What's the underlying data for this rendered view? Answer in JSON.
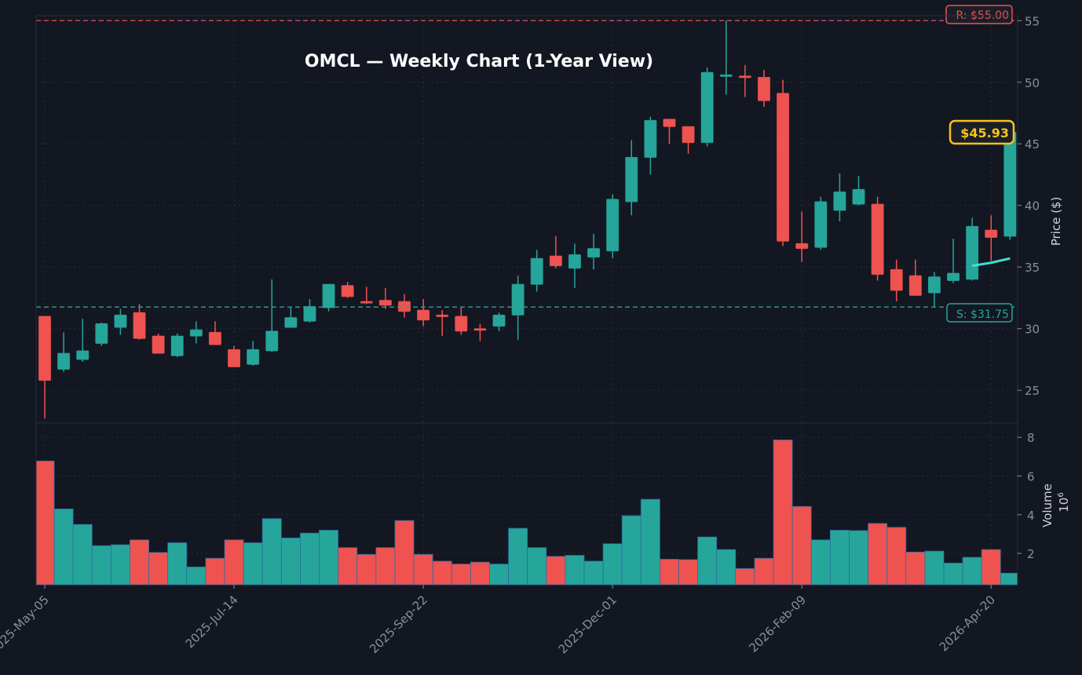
{
  "chart_data": {
    "type": "candlestick",
    "title": "OMCL — Weekly Chart (1-Year View)",
    "ylabel_price": "Price ($)",
    "ylabel_volume": "Volume",
    "volume_multiplier": "10^6",
    "price_ylim": [
      22.4,
      55.4
    ],
    "price_ticks": [
      25,
      30,
      35,
      40,
      45,
      50,
      55
    ],
    "volume_ylim": [
      0.38,
      8.7
    ],
    "volume_ticks": [
      2,
      4,
      6,
      8
    ],
    "x_tick_labels": [
      "2025-May-05",
      "2025-Jul-14",
      "2025-Sep-22",
      "2025-Dec-01",
      "2026-Feb-09",
      "2026-Apr-20"
    ],
    "grid": true,
    "colors": {
      "up": "#26a69a",
      "down": "#ef5350",
      "background": "#131722",
      "resistance": "#ef5350",
      "support": "#26a69a",
      "last_price": "#f5c518",
      "ma": "#3de0d0"
    },
    "resistance": {
      "value": 55.0,
      "label": "R: $55.00"
    },
    "support": {
      "value": 31.75,
      "label": "S: $31.75"
    },
    "last_price": {
      "value": 45.93,
      "label": "$45.93"
    },
    "moving_average": [
      {
        "date": "2026-04-13",
        "value": 35.1
      },
      {
        "date": "2026-04-20",
        "value": 35.35
      },
      {
        "date": "2026-04-27",
        "value": 35.7
      }
    ],
    "dates": [
      "2025-05-05",
      "2025-05-12",
      "2025-05-19",
      "2025-05-26",
      "2025-06-02",
      "2025-06-09",
      "2025-06-16",
      "2025-06-23",
      "2025-06-30",
      "2025-07-07",
      "2025-07-14",
      "2025-07-21",
      "2025-07-28",
      "2025-08-04",
      "2025-08-11",
      "2025-08-18",
      "2025-08-25",
      "2025-09-01",
      "2025-09-08",
      "2025-09-15",
      "2025-09-22",
      "2025-09-29",
      "2025-10-06",
      "2025-10-13",
      "2025-10-20",
      "2025-10-27",
      "2025-11-03",
      "2025-11-10",
      "2025-11-17",
      "2025-11-24",
      "2025-12-01",
      "2025-12-08",
      "2025-12-15",
      "2025-12-22",
      "2025-12-29",
      "2026-01-05",
      "2026-01-12",
      "2026-01-19",
      "2026-01-26",
      "2026-02-02",
      "2026-02-09",
      "2026-02-16",
      "2026-02-23",
      "2026-03-02",
      "2026-03-09",
      "2026-03-16",
      "2026-03-23",
      "2026-03-30",
      "2026-04-06",
      "2026-04-13",
      "2026-04-20",
      "2026-04-27"
    ],
    "ohlc": [
      [
        31.0,
        31.0,
        22.7,
        25.8
      ],
      [
        26.7,
        29.7,
        26.5,
        28.0
      ],
      [
        27.5,
        30.8,
        27.3,
        28.2
      ],
      [
        28.8,
        30.5,
        28.6,
        30.4
      ],
      [
        30.1,
        31.6,
        29.5,
        31.1
      ],
      [
        31.3,
        32.0,
        29.1,
        29.2
      ],
      [
        29.4,
        29.6,
        28.0,
        28.0
      ],
      [
        27.8,
        29.6,
        27.7,
        29.4
      ],
      [
        29.4,
        30.6,
        28.8,
        29.9
      ],
      [
        29.7,
        30.6,
        28.7,
        28.7
      ],
      [
        28.3,
        28.6,
        26.9,
        26.9
      ],
      [
        27.1,
        29.0,
        27.0,
        28.3
      ],
      [
        28.2,
        34.0,
        28.1,
        29.8
      ],
      [
        30.1,
        31.7,
        30.1,
        30.9
      ],
      [
        30.6,
        32.4,
        30.5,
        31.8
      ],
      [
        31.7,
        33.6,
        31.4,
        33.6
      ],
      [
        33.5,
        33.8,
        32.5,
        32.6
      ],
      [
        32.2,
        33.4,
        32.0,
        32.1
      ],
      [
        32.3,
        33.3,
        31.6,
        31.9
      ],
      [
        32.2,
        32.8,
        30.9,
        31.4
      ],
      [
        31.5,
        32.4,
        30.2,
        30.7
      ],
      [
        31.1,
        31.5,
        29.4,
        31.0
      ],
      [
        31.0,
        31.7,
        29.5,
        29.8
      ],
      [
        30.0,
        30.4,
        29.0,
        29.9
      ],
      [
        30.2,
        31.3,
        29.8,
        31.1
      ],
      [
        31.1,
        34.3,
        29.1,
        33.6
      ],
      [
        33.6,
        36.4,
        33.0,
        35.7
      ],
      [
        35.9,
        37.5,
        34.9,
        35.1
      ],
      [
        34.9,
        36.9,
        33.3,
        36.0
      ],
      [
        35.8,
        37.7,
        34.8,
        36.5
      ],
      [
        36.3,
        40.9,
        35.7,
        40.5
      ],
      [
        40.3,
        45.3,
        39.2,
        43.9
      ],
      [
        43.9,
        47.2,
        42.5,
        46.9
      ],
      [
        47.0,
        47.0,
        45.0,
        46.4
      ],
      [
        46.4,
        46.4,
        44.2,
        45.1
      ],
      [
        45.1,
        51.2,
        44.8,
        50.8
      ],
      [
        50.5,
        55.0,
        49.0,
        50.6
      ],
      [
        50.5,
        51.4,
        48.8,
        50.4
      ],
      [
        50.4,
        51.0,
        48.0,
        48.5
      ],
      [
        49.1,
        50.2,
        36.7,
        37.1
      ],
      [
        36.9,
        39.5,
        35.4,
        36.5
      ],
      [
        36.6,
        40.7,
        36.4,
        40.3
      ],
      [
        39.6,
        42.6,
        38.7,
        41.1
      ],
      [
        40.1,
        42.4,
        40.0,
        41.3
      ],
      [
        40.1,
        40.7,
        33.9,
        34.4
      ],
      [
        34.8,
        35.6,
        32.2,
        33.1
      ],
      [
        34.3,
        35.6,
        32.7,
        32.7
      ],
      [
        32.9,
        34.6,
        31.8,
        34.2
      ],
      [
        33.9,
        37.3,
        33.7,
        34.5
      ],
      [
        34.0,
        39.0,
        33.9,
        38.3
      ],
      [
        38.0,
        39.2,
        35.5,
        37.4
      ],
      [
        37.5,
        45.93,
        37.2,
        45.93
      ]
    ],
    "volume_millions": [
      6.78,
      4.3,
      3.5,
      2.4,
      2.45,
      2.7,
      2.05,
      2.55,
      1.3,
      1.75,
      2.7,
      2.55,
      3.8,
      2.8,
      3.05,
      3.2,
      2.3,
      1.95,
      2.3,
      3.7,
      1.95,
      1.6,
      1.45,
      1.55,
      1.45,
      3.3,
      2.3,
      1.85,
      1.9,
      1.6,
      2.5,
      3.95,
      4.8,
      1.7,
      1.68,
      2.85,
      2.2,
      1.22,
      1.75,
      7.87,
      4.43,
      2.7,
      3.2,
      3.18,
      3.55,
      3.35,
      2.07,
      2.12,
      1.5,
      1.8,
      2.2,
      0.98
    ]
  }
}
